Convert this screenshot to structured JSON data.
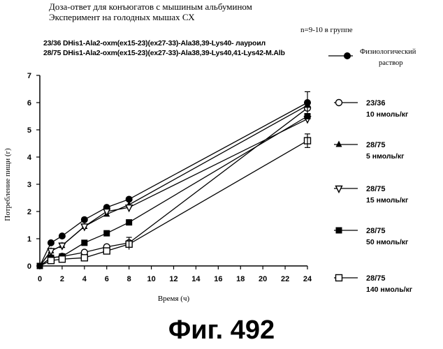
{
  "header": {
    "title_line1": "Доза-ответ для конъюгатов с мышиным альбумином",
    "title_line2": "Эксперимент на голодных мышах СХ",
    "group_note": "n=9-10 в группе",
    "compound1": "23/36 DHis1-Ala2-oxm(ex15-23)(ex27-33)-Ala38,39-Lys40- лауроил",
    "compound2": "28/75 DHis1-Ala2-oxm(ex15-23)(ex27-33)-Ala38,39-Lys40,41-Lys42-M.Alb"
  },
  "figure_label": "Фиг.  492",
  "chart_data": {
    "type": "line",
    "title": "Доза-ответ для конъюгатов с мышиным альбумином",
    "xlabel": "Время (ч)",
    "ylabel": "Потребление пищи (г)",
    "x": [
      0,
      1,
      2,
      4,
      6,
      8,
      24
    ],
    "xticks": [
      "0",
      "2",
      "4",
      "6",
      "8",
      "10",
      "12",
      "14",
      "16",
      "18",
      "20",
      "22",
      "24"
    ],
    "xtick_values": [
      0,
      2,
      4,
      6,
      8,
      10,
      12,
      14,
      16,
      18,
      20,
      22,
      24
    ],
    "yticks": [
      "0",
      "1",
      "2",
      "3",
      "4",
      "5",
      "6",
      "7"
    ],
    "ylim": [
      0,
      7
    ],
    "legend_position": "right",
    "series": [
      {
        "name": "Физиологический раствор",
        "dose": "",
        "marker": "filled-circle",
        "values": [
          0,
          0.85,
          1.1,
          1.7,
          2.15,
          2.45,
          6.0
        ]
      },
      {
        "name": "23/36",
        "dose": "10 нмоль/кг",
        "marker": "open-circle",
        "values": [
          0,
          0.3,
          0.35,
          0.5,
          0.7,
          0.85,
          5.8
        ]
      },
      {
        "name": "28/75",
        "dose": "5 нмоль/кг",
        "marker": "filled-triangle",
        "values": [
          0,
          0.55,
          0.75,
          1.45,
          1.9,
          2.25,
          5.9
        ]
      },
      {
        "name": "28/75",
        "dose": "15 нмоль/кг",
        "marker": "open-triangle-down",
        "values": [
          0,
          0.55,
          0.75,
          1.45,
          2.0,
          2.15,
          5.4
        ]
      },
      {
        "name": "28/75",
        "dose": "50 нмоль/кг",
        "marker": "filled-square",
        "values": [
          0,
          0.3,
          0.35,
          0.85,
          1.2,
          1.6,
          5.5
        ]
      },
      {
        "name": "28/75",
        "dose": "140 нмоль/кг",
        "marker": "open-square",
        "values": [
          0,
          0.2,
          0.25,
          0.3,
          0.55,
          0.8,
          4.6
        ]
      }
    ]
  }
}
